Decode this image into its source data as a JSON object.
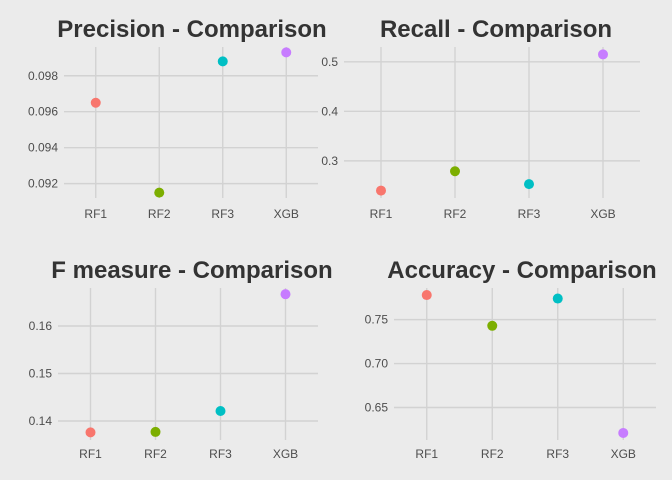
{
  "chart_data": [
    {
      "type": "scatter",
      "title": "Precision - Comparison",
      "categories": [
        "RF1",
        "RF2",
        "RF3",
        "XGB"
      ],
      "values": [
        0.0965,
        0.0915,
        0.0988,
        0.0993
      ],
      "yticks": [
        "0.092",
        "0.094",
        "0.096",
        "0.098"
      ],
      "ylim": [
        0.0912,
        0.0996
      ],
      "grid": true
    },
    {
      "type": "scatter",
      "title": "Recall - Comparison",
      "categories": [
        "RF1",
        "RF2",
        "RF3",
        "XGB"
      ],
      "values": [
        0.24,
        0.279,
        0.253,
        0.515
      ],
      "yticks": [
        "0.3",
        "0.4",
        "0.5"
      ],
      "ylim": [
        0.225,
        0.53
      ],
      "grid": true
    },
    {
      "type": "scatter",
      "title": "F measure - Comparison",
      "categories": [
        "RF1",
        "RF2",
        "RF3",
        "XGB"
      ],
      "values": [
        0.1376,
        0.1377,
        0.1421,
        0.1667
      ],
      "yticks": [
        "0.14",
        "0.15",
        "0.16"
      ],
      "ylim": [
        0.136,
        0.168
      ],
      "grid": true
    },
    {
      "type": "scatter",
      "title": "Accuracy - Comparison",
      "categories": [
        "RF1",
        "RF2",
        "RF3",
        "XGB"
      ],
      "values": [
        0.778,
        0.743,
        0.774,
        0.621
      ],
      "yticks": [
        "0.65",
        "0.70",
        "0.75"
      ],
      "ylim": [
        0.613,
        0.786
      ],
      "grid": true
    }
  ],
  "colors": [
    "#f8766d",
    "#7cae00",
    "#00bfc4",
    "#c77cff"
  ]
}
